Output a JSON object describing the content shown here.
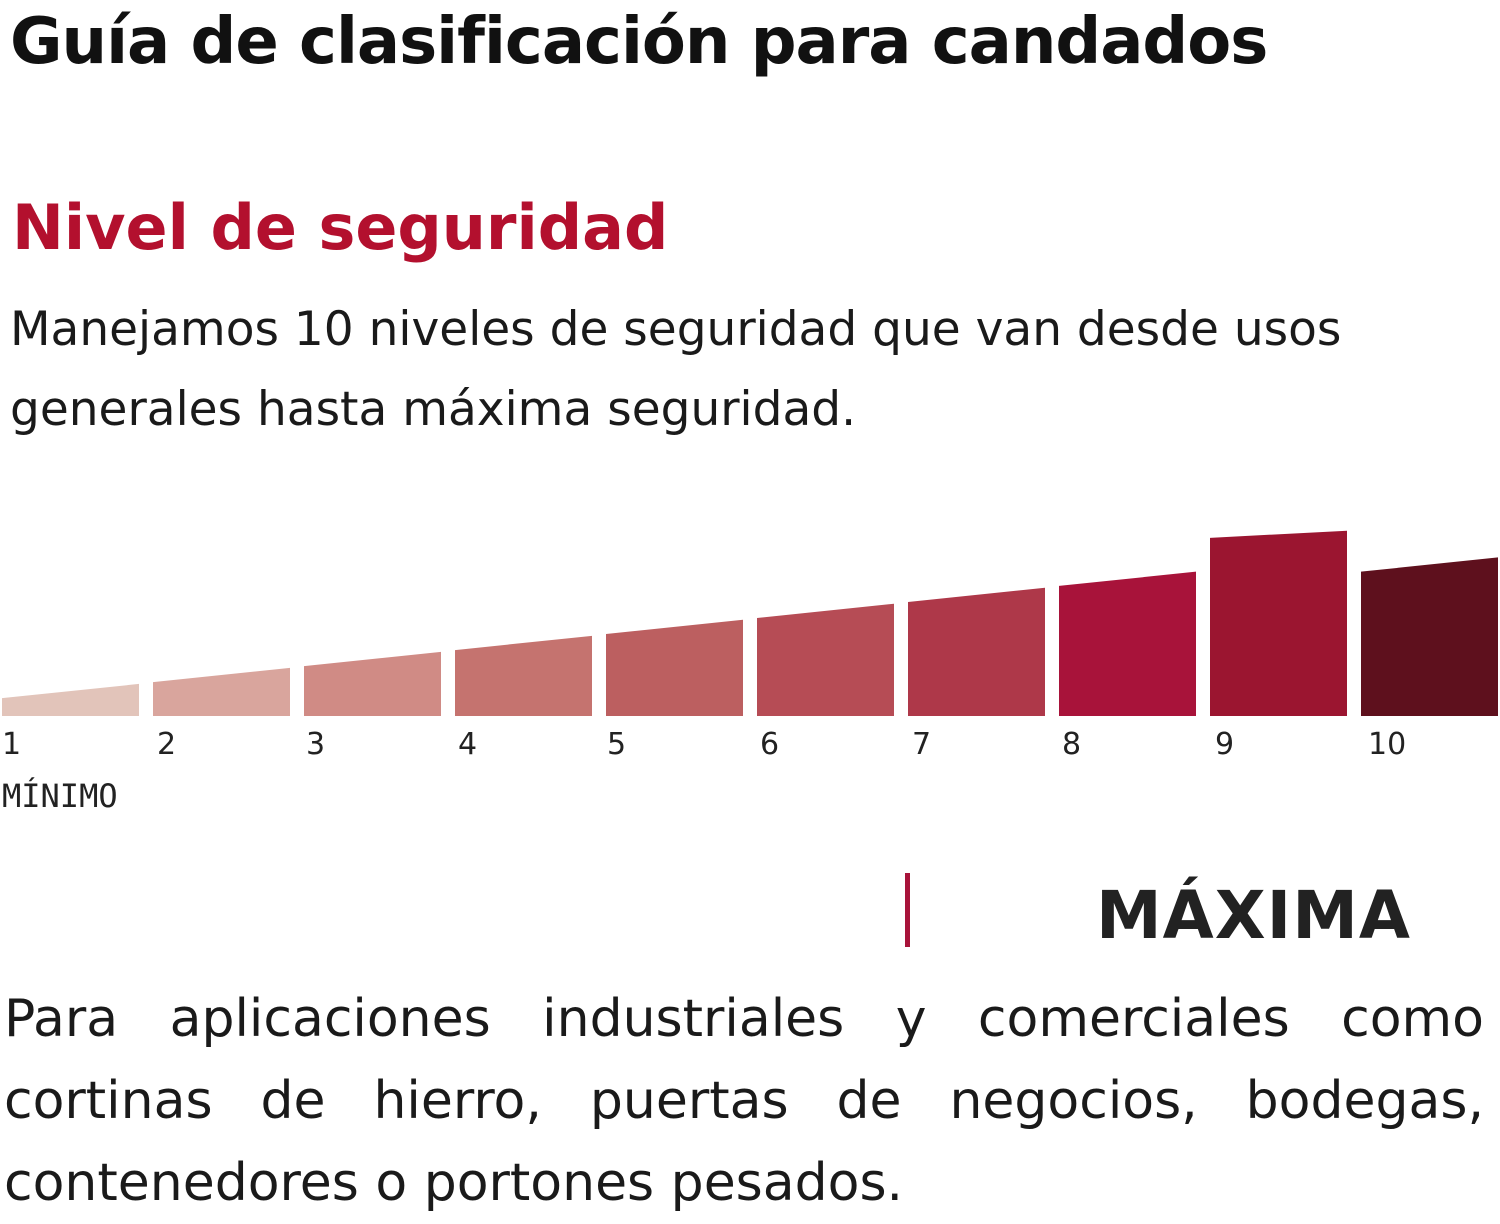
{
  "header": {
    "title": "Guía de clasificación para candados"
  },
  "section": {
    "title": "Nivel de seguridad",
    "intro": "Manejamos 10 niveles de seguridad que van desde usos generales hasta máxima seguridad."
  },
  "chart_data": {
    "type": "bar",
    "categories": [
      "1",
      "2",
      "3",
      "4",
      "5",
      "6",
      "7",
      "8",
      "9",
      "10"
    ],
    "start_values": [
      1.0,
      1.9,
      2.8,
      3.7,
      4.6,
      5.5,
      6.4,
      7.3,
      10.0,
      8.1
    ],
    "end_values": [
      1.8,
      2.7,
      3.6,
      4.5,
      5.4,
      6.3,
      7.2,
      8.1,
      10.4,
      8.9
    ],
    "colors": [
      "#e2c4ba",
      "#d9a59d",
      "#d08b85",
      "#c5736f",
      "#bc5f60",
      "#b64c55",
      "#ae3849",
      "#a8133a",
      "#9b1530",
      "#5e101d"
    ],
    "ylim": [
      0,
      11
    ],
    "min_label": "MÍNIMO",
    "grid": false,
    "legend": "none"
  },
  "level": {
    "name": "MÁXIMA",
    "accent": "#a8133a",
    "description": "Para aplicaciones industriales y comerciales como cortinas de hierro, puertas de negocios, bodegas, contenedores o portones pesados."
  },
  "colors": {
    "accent": "#b3102e",
    "text": "#1a1a1a"
  }
}
